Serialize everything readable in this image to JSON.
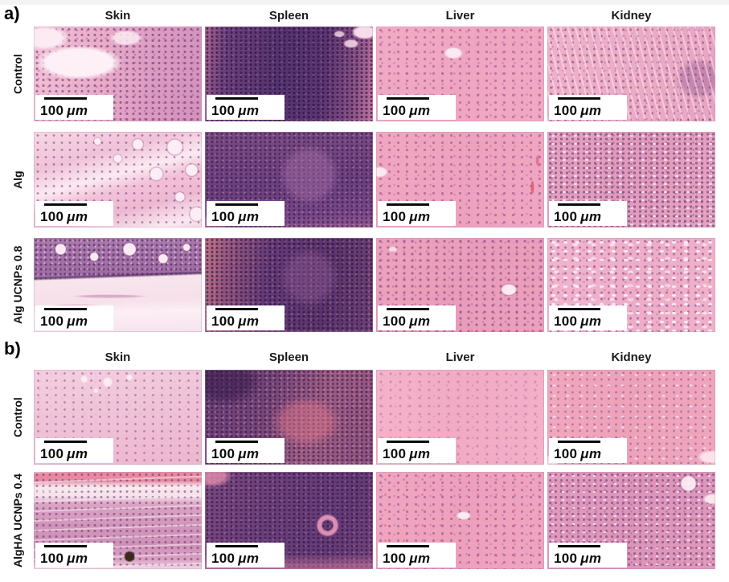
{
  "figure": {
    "panel_a": {
      "label": "a)",
      "columns": [
        "Skin",
        "Spleen",
        "Liver",
        "Kidney"
      ],
      "rows": [
        "Control",
        "Alg",
        "Alg UCNPs 0.8"
      ]
    },
    "panel_b": {
      "label": "b)",
      "columns": [
        "Skin",
        "Spleen",
        "Liver",
        "Kidney"
      ],
      "rows": [
        "Control",
        "AlgHA UCNPs 0.4"
      ]
    },
    "scale_bar": {
      "value": "100",
      "unit": "μm"
    }
  }
}
